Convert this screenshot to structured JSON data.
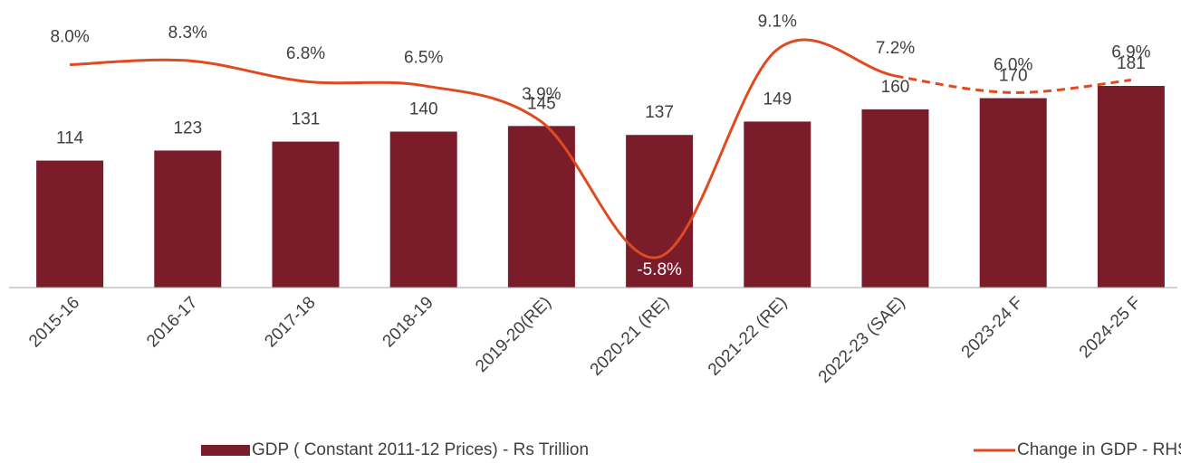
{
  "chart_data": {
    "type": "bar_line",
    "categories": [
      "2015-16",
      "2016-17",
      "2017-18",
      "2018-19",
      "2019-20(RE)",
      "2020-21 (RE)",
      "2021-22 (RE)",
      "2022-23 (SAE)",
      "2023-24 F",
      "2024-25 F"
    ],
    "ylim": [
      0,
      250
    ],
    "y2lim": [
      -8,
      12
    ],
    "legend": "bottom",
    "series": [
      {
        "name": "GDP ( Constant 2011-12 Prices) - Rs Trillion",
        "type": "bar",
        "color": "#7b1c2a",
        "values": [
          114,
          123,
          131,
          140,
          145,
          137,
          149,
          160,
          170,
          181
        ]
      },
      {
        "name": "Change in GDP - RHS",
        "type": "line",
        "axis": "y2",
        "color": "#e04a1f",
        "smooth": true,
        "dash_start": 7,
        "values": [
          8.0,
          8.3,
          6.8,
          6.5,
          3.9,
          -5.8,
          9.1,
          7.2,
          6.0,
          6.9
        ],
        "value_labels": [
          "8.0%",
          "8.3%",
          "6.8%",
          "6.5%",
          "3.9%",
          "-5.8%",
          "9.1%",
          "7.2%",
          "6.0%",
          "6.9%"
        ]
      }
    ]
  }
}
